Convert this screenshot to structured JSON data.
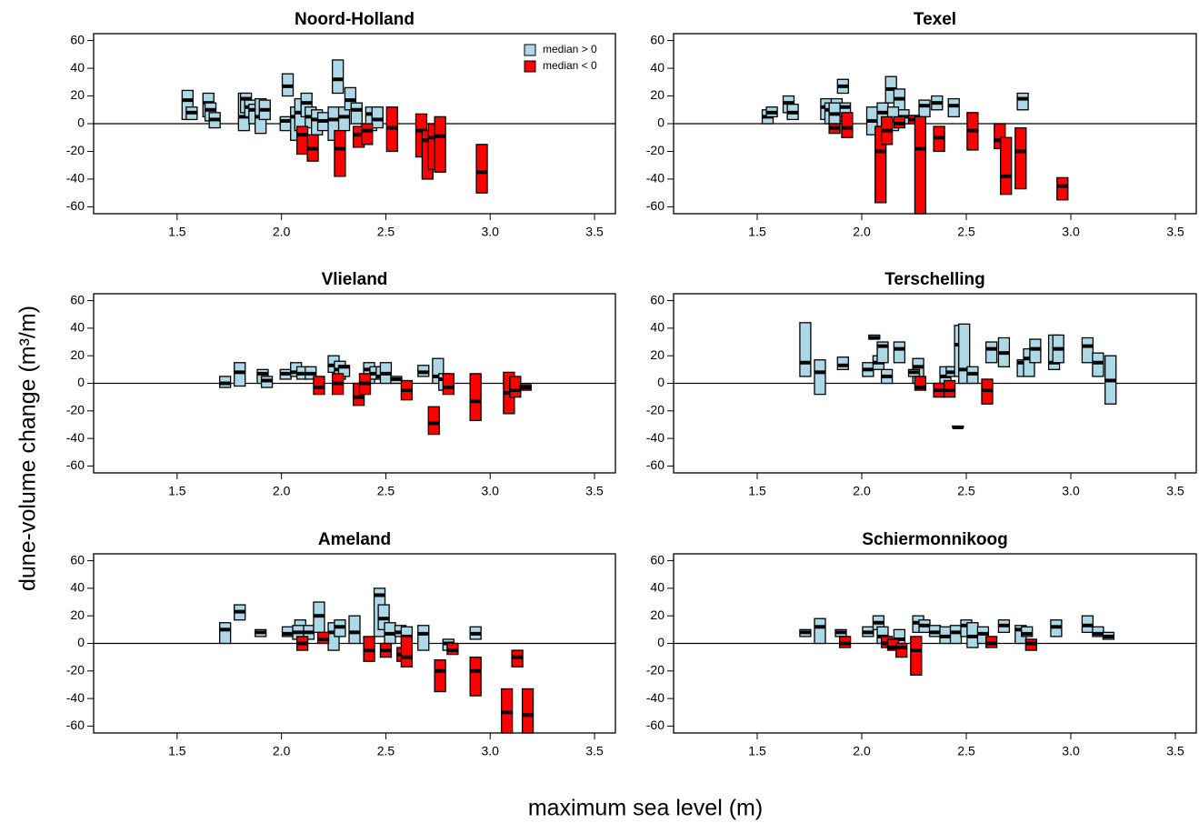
{
  "xlabel": "maximum sea level (m)",
  "ylabel": "dune-volume change   (m³/m)",
  "chart_data": [
    {
      "type": "box",
      "title": "Noord-Holland",
      "xlim": [
        1.1,
        3.6
      ],
      "ylim": [
        -65,
        65
      ],
      "xticks": [
        1.5,
        {
          "value": 2,
          "label": "2.0"
        },
        2.5,
        {
          "value": 3,
          "label": "3.0"
        },
        3.5
      ],
      "yticks": [
        -60,
        -40,
        -20,
        0,
        20,
        40,
        60
      ],
      "hline": 0,
      "legend": "topright",
      "series": [
        {
          "name": "median > 0",
          "color": "#add8e6",
          "x": [
            1.55,
            1.57,
            1.65,
            1.66,
            1.68,
            1.82,
            1.83,
            1.85,
            1.87,
            1.9,
            1.92,
            2.03,
            2.02,
            2.07,
            2.09,
            2.12,
            2.14,
            2.17,
            2.2,
            2.25,
            2.27,
            2.3,
            2.33,
            2.36,
            2.43,
            2.46
          ],
          "low": [
            3,
            3,
            5,
            2,
            -3,
            -5,
            8,
            5,
            0,
            -7,
            3,
            20,
            -5,
            -12,
            -5,
            5,
            -3,
            -8,
            -5,
            -12,
            22,
            -5,
            10,
            0,
            -5,
            -3
          ],
          "median": [
            17,
            8,
            15,
            10,
            3,
            5,
            18,
            12,
            10,
            5,
            10,
            27,
            2,
            5,
            8,
            15,
            5,
            3,
            2,
            3,
            32,
            5,
            17,
            10,
            7,
            3
          ],
          "high": [
            24,
            12,
            22,
            15,
            8,
            22,
            22,
            17,
            14,
            18,
            17,
            36,
            5,
            12,
            18,
            22,
            12,
            10,
            8,
            12,
            46,
            12,
            26,
            15,
            12,
            12
          ]
        },
        {
          "name": "median < 0",
          "color": "#ff0000",
          "x": [
            2.1,
            2.15,
            2.28,
            2.37,
            2.41,
            2.53,
            2.67,
            2.7,
            2.73,
            2.76,
            2.96
          ],
          "low": [
            -22,
            -27,
            -38,
            -17,
            -15,
            -20,
            -24,
            -40,
            -33,
            -35,
            -50
          ],
          "median": [
            -8,
            -18,
            -18,
            -8,
            -5,
            -3,
            -5,
            -12,
            -10,
            -9,
            -35
          ],
          "high": [
            -2,
            -8,
            -5,
            -2,
            0,
            12,
            7,
            -5,
            0,
            5,
            -15
          ]
        }
      ]
    },
    {
      "type": "box",
      "title": "Texel",
      "xlim": [
        1.1,
        3.6
      ],
      "ylim": [
        -65,
        65
      ],
      "xticks": [
        1.5,
        {
          "value": 2,
          "label": "2.0"
        },
        2.5,
        {
          "value": 3,
          "label": "3.0"
        },
        3.5
      ],
      "yticks": [
        -60,
        -40,
        -20,
        0,
        20,
        40,
        60
      ],
      "hline": 0,
      "series": [
        {
          "color": "#add8e6",
          "x": [
            1.55,
            1.57,
            1.65,
            1.67,
            1.83,
            1.85,
            1.88,
            1.91,
            1.92,
            2.05,
            2.1,
            2.14,
            2.18,
            2.2,
            2.3,
            2.36,
            2.44,
            2.77,
            1.87,
            2.15
          ],
          "low": [
            0,
            5,
            8,
            3,
            3,
            0,
            2,
            22,
            5,
            -8,
            -2,
            15,
            5,
            0,
            5,
            10,
            5,
            10,
            0,
            -5
          ],
          "median": [
            5,
            8,
            15,
            8,
            12,
            10,
            12,
            27,
            12,
            2,
            8,
            25,
            18,
            5,
            13,
            15,
            13,
            18,
            7,
            2
          ],
          "high": [
            10,
            12,
            20,
            14,
            18,
            15,
            18,
            32,
            15,
            12,
            15,
            34,
            25,
            10,
            17,
            20,
            18,
            22,
            15,
            12
          ]
        },
        {
          "color": "#ff0000",
          "x": [
            1.87,
            1.93,
            2.09,
            2.12,
            2.18,
            2.25,
            2.28,
            2.37,
            2.53,
            2.66,
            2.69,
            2.76,
            2.96
          ],
          "low": [
            -7,
            -10,
            -57,
            -15,
            -3,
            0,
            -65,
            -20,
            -19,
            -18,
            -51,
            -47,
            -55
          ],
          "median": [
            -3,
            -3,
            -20,
            -5,
            0,
            3,
            -18,
            -10,
            -5,
            -12,
            -38,
            -20,
            -45
          ],
          "high": [
            0,
            8,
            -2,
            5,
            5,
            6,
            5,
            -2,
            8,
            0,
            -10,
            -3,
            -39
          ]
        }
      ]
    },
    {
      "type": "box",
      "title": "Vlieland",
      "xlim": [
        1.1,
        3.6
      ],
      "ylim": [
        -65,
        65
      ],
      "xticks": [
        1.5,
        {
          "value": 2,
          "label": "2.0"
        },
        2.5,
        {
          "value": 3,
          "label": "3.0"
        },
        3.5
      ],
      "yticks": [
        -60,
        -40,
        -20,
        0,
        20,
        40,
        60
      ],
      "hline": 0,
      "series": [
        {
          "color": "#add8e6",
          "x": [
            1.73,
            1.8,
            1.91,
            1.93,
            2.02,
            2.07,
            2.1,
            2.14,
            2.25,
            2.28,
            2.3,
            2.42,
            2.45,
            2.48,
            2.5,
            2.55,
            2.68,
            2.75,
            2.78
          ],
          "low": [
            -3,
            -2,
            0,
            -3,
            3,
            5,
            3,
            3,
            8,
            3,
            5,
            0,
            3,
            3,
            0,
            0,
            5,
            0,
            -5
          ],
          "median": [
            0,
            8,
            7,
            2,
            7,
            8,
            7,
            7,
            13,
            10,
            12,
            10,
            7,
            5,
            7,
            3,
            8,
            5,
            3
          ],
          "high": [
            5,
            15,
            10,
            5,
            10,
            15,
            12,
            12,
            20,
            16,
            13,
            15,
            12,
            12,
            15,
            5,
            13,
            18,
            7
          ]
        },
        {
          "color": "#ff0000",
          "x": [
            2.18,
            2.27,
            2.37,
            2.4,
            2.6,
            2.73,
            2.8,
            2.93,
            3.09,
            3.12,
            3.17
          ],
          "low": [
            -8,
            -8,
            -16,
            -8,
            -12,
            -37,
            -8,
            -27,
            -22,
            -10,
            -5
          ],
          "median": [
            -3,
            0,
            -10,
            0,
            -5,
            -29,
            -3,
            -13,
            -7,
            -5,
            -3
          ],
          "high": [
            5,
            7,
            0,
            7,
            2,
            -17,
            7,
            7,
            8,
            5,
            -1
          ]
        }
      ]
    },
    {
      "type": "box",
      "title": "Terschelling",
      "xlim": [
        1.1,
        3.6
      ],
      "ylim": [
        -65,
        65
      ],
      "xticks": [
        1.5,
        {
          "value": 2,
          "label": "2.0"
        },
        2.5,
        {
          "value": 3,
          "label": "3.0"
        },
        3.5
      ],
      "yticks": [
        -60,
        -40,
        -20,
        0,
        20,
        40,
        60
      ],
      "hline": 0,
      "series": [
        {
          "color": "#add8e6",
          "x": [
            1.73,
            1.8,
            1.91,
            2.03,
            2.08,
            2.1,
            2.12,
            2.18,
            2.27,
            2.4,
            2.43,
            2.47,
            2.49,
            2.53,
            2.62,
            2.68,
            2.77,
            2.8,
            2.83,
            2.92,
            2.94,
            3.08,
            3.13,
            3.19,
            2.25,
            2.06
          ],
          "low": [
            5,
            -8,
            10,
            5,
            10,
            15,
            0,
            15,
            0,
            0,
            5,
            5,
            0,
            0,
            15,
            12,
            5,
            5,
            15,
            10,
            15,
            15,
            5,
            -15,
            5,
            32
          ],
          "median": [
            15,
            8,
            13,
            10,
            15,
            27,
            5,
            25,
            12,
            5,
            8,
            28,
            10,
            7,
            25,
            22,
            15,
            18,
            25,
            15,
            25,
            27,
            15,
            2,
            8,
            33
          ],
          "high": [
            44,
            17,
            19,
            15,
            20,
            30,
            10,
            30,
            18,
            12,
            12,
            42,
            43,
            12,
            30,
            33,
            17,
            25,
            32,
            35,
            35,
            33,
            22,
            20,
            10,
            35
          ]
        },
        {
          "color": "#ff0000",
          "x": [
            2.28,
            2.37,
            2.42,
            2.46,
            2.6
          ],
          "low": [
            -5,
            -10,
            -10,
            -32,
            -15
          ],
          "median": [
            -3,
            -5,
            -5,
            -32,
            -5
          ],
          "high": [
            5,
            0,
            2,
            -31,
            3
          ]
        }
      ]
    },
    {
      "type": "box",
      "title": "Ameland",
      "xlim": [
        1.1,
        3.6
      ],
      "ylim": [
        -65,
        65
      ],
      "xticks": [
        1.5,
        {
          "value": 2,
          "label": "2.0"
        },
        2.5,
        {
          "value": 3,
          "label": "3.0"
        },
        3.5
      ],
      "yticks": [
        -60,
        -40,
        -20,
        0,
        20,
        40,
        60
      ],
      "hline": 0,
      "series": [
        {
          "color": "#add8e6",
          "x": [
            1.73,
            1.8,
            1.9,
            2.03,
            2.09,
            2.13,
            2.18,
            2.25,
            2.28,
            2.35,
            2.47,
            2.49,
            2.52,
            2.57,
            2.6,
            2.68,
            2.8,
            2.93,
            2.08
          ],
          "low": [
            0,
            17,
            5,
            5,
            5,
            3,
            8,
            -5,
            5,
            0,
            5,
            10,
            0,
            5,
            0,
            -5,
            -5,
            3,
            3
          ],
          "median": [
            10,
            23,
            8,
            7,
            10,
            8,
            20,
            8,
            12,
            8,
            35,
            18,
            7,
            8,
            5,
            7,
            0,
            7,
            8
          ],
          "high": [
            15,
            28,
            10,
            12,
            17,
            13,
            30,
            15,
            17,
            20,
            40,
            28,
            15,
            13,
            12,
            13,
            3,
            12,
            13
          ]
        },
        {
          "color": "#ff0000",
          "x": [
            2.1,
            2.2,
            2.42,
            2.5,
            2.58,
            2.6,
            2.76,
            2.82,
            2.93,
            3.08,
            3.13,
            3.18
          ],
          "low": [
            -5,
            0,
            -13,
            -10,
            -13,
            -17,
            -35,
            -8,
            -38,
            -65,
            -17,
            -65
          ],
          "median": [
            0,
            3,
            -5,
            -5,
            -8,
            -10,
            -20,
            -5,
            -20,
            -50,
            -10,
            -52
          ],
          "high": [
            5,
            8,
            5,
            0,
            -3,
            5,
            -12,
            0,
            -10,
            -33,
            -5,
            -33
          ]
        }
      ]
    },
    {
      "type": "box",
      "title": "Schiermonnikoog",
      "xlim": [
        1.1,
        3.6
      ],
      "ylim": [
        -65,
        65
      ],
      "xticks": [
        1.5,
        {
          "value": 2,
          "label": "2.0"
        },
        2.5,
        {
          "value": 3,
          "label": "3.0"
        },
        3.5
      ],
      "yticks": [
        -60,
        -40,
        -20,
        0,
        20,
        40,
        60
      ],
      "hline": 0,
      "series": [
        {
          "color": "#add8e6",
          "x": [
            1.73,
            1.8,
            1.9,
            2.03,
            2.08,
            2.1,
            2.18,
            2.27,
            2.3,
            2.35,
            2.4,
            2.45,
            2.5,
            2.53,
            2.58,
            2.68,
            2.76,
            2.79,
            2.93,
            3.08,
            3.13,
            3.18
          ],
          "low": [
            5,
            0,
            5,
            5,
            10,
            0,
            0,
            8,
            8,
            5,
            0,
            0,
            5,
            -3,
            0,
            8,
            0,
            5,
            5,
            8,
            5,
            3
          ],
          "median": [
            8,
            12,
            8,
            8,
            15,
            5,
            3,
            15,
            13,
            8,
            5,
            8,
            13,
            5,
            7,
            13,
            10,
            7,
            12,
            13,
            7,
            5
          ],
          "high": [
            10,
            18,
            10,
            12,
            20,
            12,
            10,
            20,
            17,
            13,
            12,
            13,
            17,
            15,
            12,
            17,
            13,
            12,
            17,
            20,
            12,
            8
          ]
        },
        {
          "color": "#ff0000",
          "x": [
            1.92,
            2.12,
            2.15,
            2.19,
            2.26,
            2.62,
            2.81
          ],
          "low": [
            -3,
            -3,
            -5,
            -10,
            -23,
            -3,
            -5
          ],
          "median": [
            0,
            0,
            -3,
            -3,
            -5,
            0,
            0
          ],
          "high": [
            5,
            5,
            3,
            0,
            5,
            5,
            3
          ]
        }
      ]
    }
  ]
}
